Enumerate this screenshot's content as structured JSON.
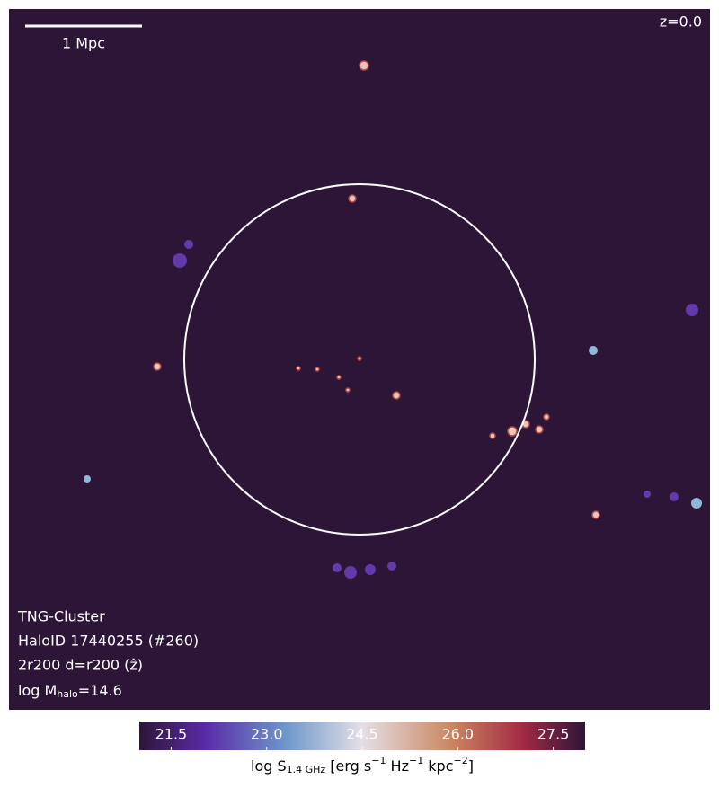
{
  "scale_bar": {
    "label": "1 Mpc"
  },
  "redshift": "z=0.0",
  "annotations": {
    "simulation": "TNG-Cluster",
    "halo_id": "HaloID 17440255 (#260)",
    "projection": "2r200 d=r200 (ẑ)",
    "mass": [
      "log M",
      "halo",
      "=14.6"
    ]
  },
  "colorbar": {
    "label": [
      "log S",
      "1.4 GHz",
      " [erg s",
      "−1",
      " Hz",
      "−1",
      " kpc",
      "−2",
      "]"
    ],
    "lim": [
      21,
      28
    ],
    "ticks": [
      21.5,
      {
        "value": 23,
        "label": "23.0"
      },
      24.5,
      {
        "value": 26,
        "label": "26.0"
      },
      27.5
    ]
  }
}
